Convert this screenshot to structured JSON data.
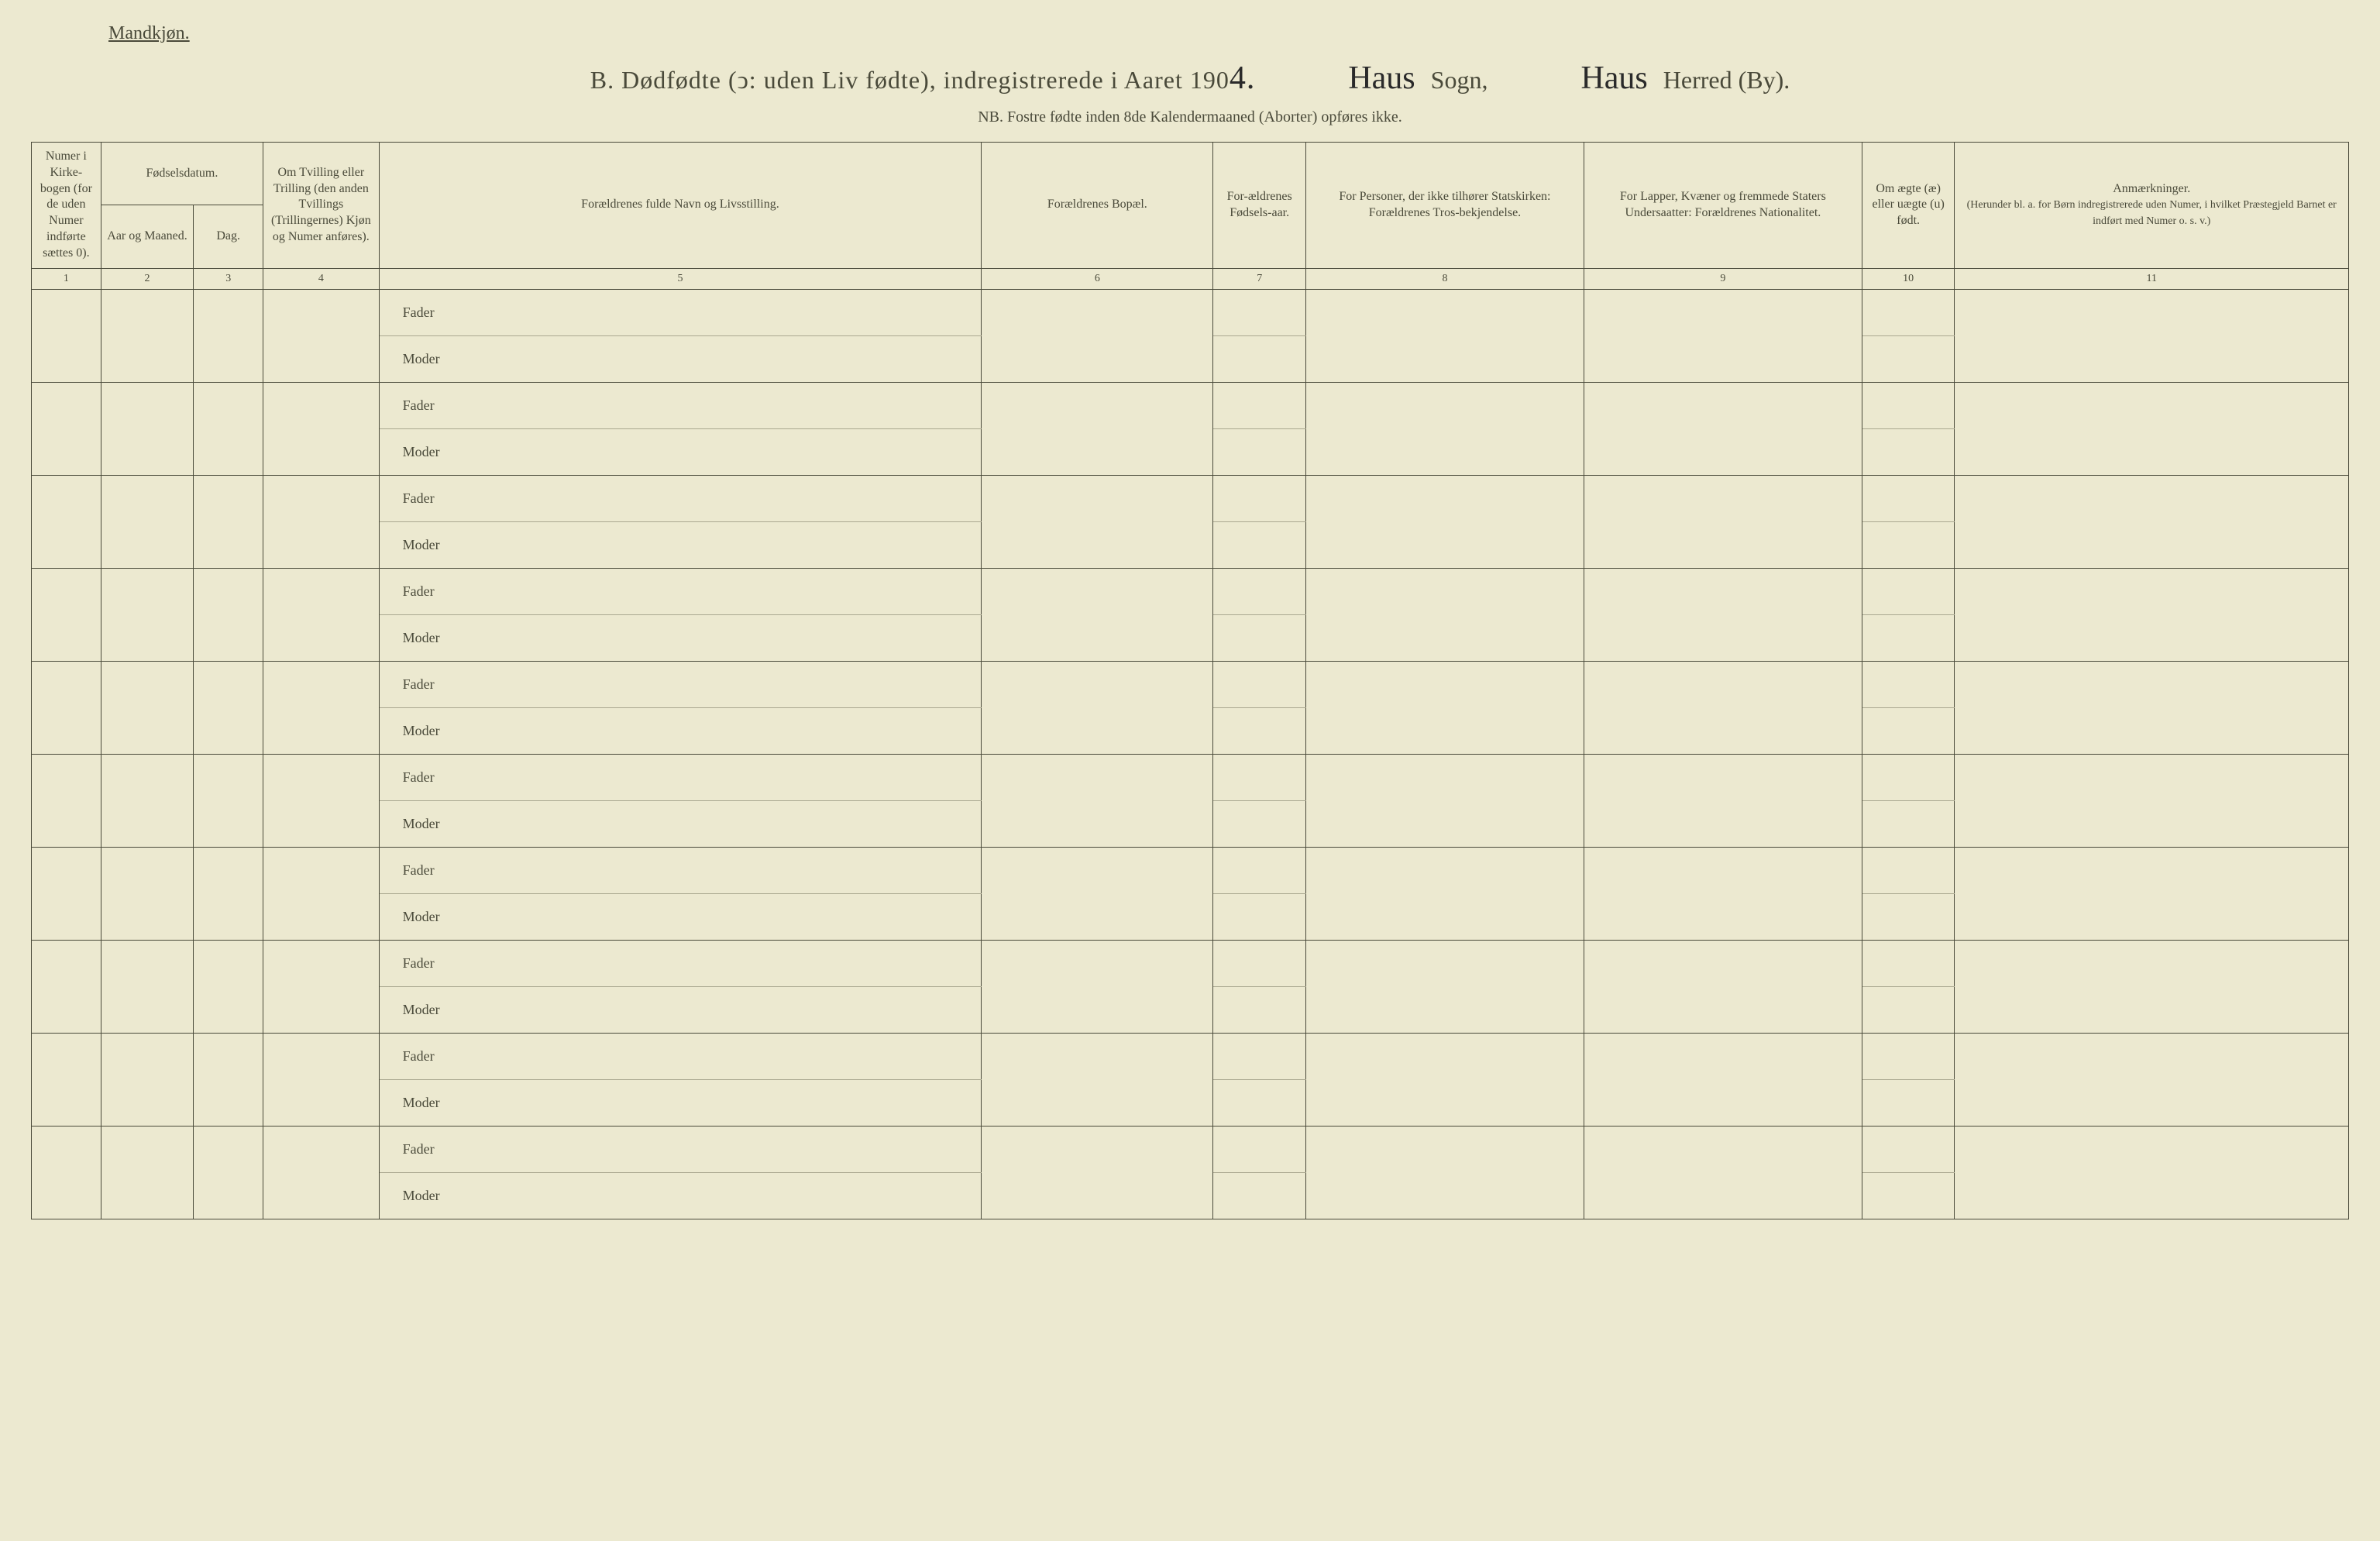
{
  "document": {
    "gender": "Mandkjøn.",
    "section_letter": "B.",
    "title_main": "Dødfødte (ↄ: uden Liv fødte), indregistrerede i Aaret 190",
    "year_suffix": "4.",
    "sogn_handwritten": "Haus",
    "sogn_label": "Sogn,",
    "herred_handwritten": "Haus",
    "herred_label": "Herred (By).",
    "subtitle": "NB. Fostre fødte inden 8de Kalendermaaned (Aborter) opføres ikke."
  },
  "columns": {
    "c1": "Numer i Kirke-bogen (for de uden Numer indførte sættes 0).",
    "c2_group": "Fødselsdatum.",
    "c2": "Aar og Maaned.",
    "c3": "Dag.",
    "c4": "Om Tvilling eller Trilling (den anden Tvillings (Trillingernes) Kjøn og Numer anføres).",
    "c5": "Forældrenes fulde Navn og Livsstilling.",
    "c6": "Forældrenes Bopæl.",
    "c7": "For-ældrenes Fødsels-aar.",
    "c8": "For Personer, der ikke tilhører Statskirken: Forældrenes Tros-bekjendelse.",
    "c9": "For Lapper, Kvæner og fremmede Staters Undersaatter: Forældrenes Nationalitet.",
    "c10": "Om ægte (æ) eller uægte (u) født.",
    "c11": "Anmærkninger.",
    "c11_sub": "(Herunder bl. a. for Børn indregistrerede uden Numer, i hvilket Præstegjeld Barnet er indført med Numer o. s. v.)"
  },
  "colnums": [
    "1",
    "2",
    "3",
    "4",
    "5",
    "6",
    "7",
    "8",
    "9",
    "10",
    "11"
  ],
  "row_labels": {
    "fader": "Fader",
    "moder": "Moder"
  },
  "num_rows": 10,
  "styling": {
    "background_color": "#ece9d0",
    "text_color": "#4a4a3a",
    "border_color": "#4a4a3a",
    "handwritten_color": "#2a2a2a",
    "title_fontsize": 32,
    "header_fontsize": 16,
    "body_fontsize": 18
  }
}
